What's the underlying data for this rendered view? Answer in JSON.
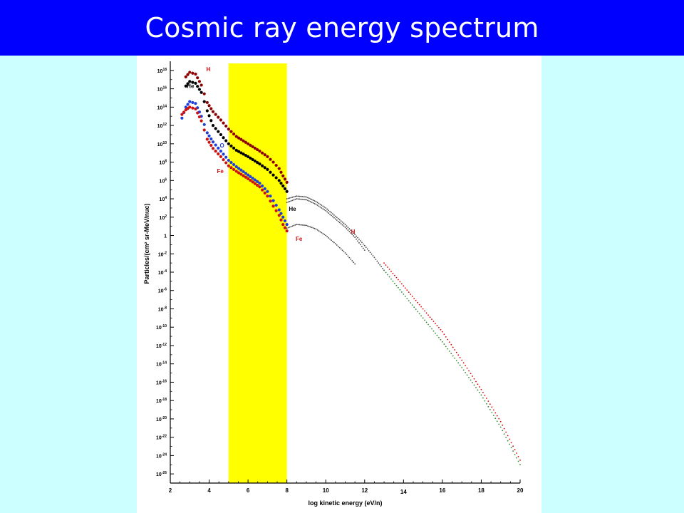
{
  "slide": {
    "title": "Cosmic ray energy spectrum",
    "title_bar_color": "#0000ff",
    "background_color": "#ccffff"
  },
  "chart_data": {
    "type": "scatter",
    "title": "",
    "xlabel": "log kinetic energy (eV/n)",
    "ylabel": "Particles/(cm² sr-MeV/nuc)",
    "x_ticks": [
      2,
      4,
      6,
      8,
      10,
      12,
      14,
      16,
      18,
      20
    ],
    "x_tick_labels": [
      "2",
      "4",
      "6",
      "8",
      "10",
      "12",
      "14",
      "16",
      "18",
      "20"
    ],
    "xlim": [
      2,
      20
    ],
    "y_scale": "log",
    "y_tick_exponents": [
      18,
      16,
      14,
      12,
      10,
      8,
      6,
      4,
      2,
      0,
      -2,
      -4,
      -6,
      -8,
      -10,
      -12,
      -14,
      -16,
      -18,
      -20,
      -22,
      -24,
      -26
    ],
    "ylim_log10": [
      -27,
      19
    ],
    "highlight_band": {
      "x_range": [
        5,
        8
      ],
      "color": "#ffff00"
    },
    "grid": false,
    "series": [
      {
        "name": "H",
        "color": "#8b0000",
        "group": "low-energy",
        "points": [
          [
            2.8,
            17.3
          ],
          [
            3.0,
            17.8
          ],
          [
            3.3,
            17.6
          ],
          [
            3.6,
            16.4
          ],
          [
            3.9,
            14.5
          ],
          [
            4.2,
            13.5
          ],
          [
            4.6,
            12.6
          ],
          [
            5.0,
            11.6
          ],
          [
            5.4,
            10.8
          ],
          [
            6.0,
            10.0
          ],
          [
            6.6,
            9.2
          ],
          [
            7.0,
            8.6
          ],
          [
            7.3,
            8.0
          ],
          [
            7.6,
            7.3
          ],
          [
            7.8,
            6.5
          ],
          [
            8.0,
            5.8
          ]
        ]
      },
      {
        "name": "He",
        "color": "#000000",
        "group": "low-energy",
        "points": [
          [
            2.8,
            16.3
          ],
          [
            3.0,
            16.8
          ],
          [
            3.3,
            16.6
          ],
          [
            3.6,
            15.6
          ],
          [
            3.9,
            13.6
          ],
          [
            4.2,
            12.0
          ],
          [
            4.6,
            11.0
          ],
          [
            5.0,
            10.0
          ],
          [
            5.4,
            9.3
          ],
          [
            6.0,
            8.6
          ],
          [
            6.6,
            7.8
          ],
          [
            7.0,
            7.2
          ],
          [
            7.3,
            6.6
          ],
          [
            7.6,
            6.0
          ],
          [
            7.8,
            5.4
          ],
          [
            8.0,
            4.8
          ]
        ]
      },
      {
        "name": "O",
        "color": "#1f3fd8",
        "group": "low-energy",
        "points": [
          [
            2.6,
            12.8
          ],
          [
            2.8,
            14.0
          ],
          [
            3.0,
            14.6
          ],
          [
            3.3,
            14.4
          ],
          [
            3.6,
            13.0
          ],
          [
            3.9,
            11.2
          ],
          [
            4.2,
            10.2
          ],
          [
            4.6,
            9.2
          ],
          [
            5.0,
            8.2
          ],
          [
            5.4,
            7.5
          ],
          [
            6.0,
            6.6
          ],
          [
            6.6,
            5.7
          ],
          [
            7.0,
            4.8
          ],
          [
            7.3,
            3.8
          ],
          [
            7.6,
            2.8
          ],
          [
            7.8,
            2.0
          ],
          [
            8.0,
            1.2
          ]
        ]
      },
      {
        "name": "Fe",
        "color": "#cc1111",
        "group": "low-energy",
        "points": [
          [
            2.6,
            13.2
          ],
          [
            2.8,
            13.7
          ],
          [
            3.0,
            14.0
          ],
          [
            3.3,
            13.8
          ],
          [
            3.6,
            12.5
          ],
          [
            3.9,
            10.5
          ],
          [
            4.2,
            9.5
          ],
          [
            4.6,
            8.6
          ],
          [
            5.0,
            7.6
          ],
          [
            5.4,
            7.0
          ],
          [
            6.0,
            6.2
          ],
          [
            6.6,
            5.3
          ],
          [
            7.0,
            4.3
          ],
          [
            7.3,
            3.2
          ],
          [
            7.6,
            2.2
          ],
          [
            7.8,
            1.2
          ],
          [
            8.0,
            0.5
          ]
        ]
      },
      {
        "name": "He",
        "color": "#444444",
        "group": "high-energy",
        "points": [
          [
            8.0,
            3.6
          ],
          [
            8.5,
            4.0
          ],
          [
            9.0,
            3.9
          ],
          [
            9.5,
            3.4
          ],
          [
            10.0,
            2.7
          ],
          [
            10.5,
            1.8
          ],
          [
            11.0,
            0.9
          ],
          [
            11.5,
            -0.2
          ],
          [
            12.0,
            -1.6
          ]
        ]
      },
      {
        "name": "H",
        "color": "#444444",
        "group": "high-energy",
        "points": [
          [
            8.0,
            4.0
          ],
          [
            8.5,
            4.3
          ],
          [
            9.0,
            4.2
          ],
          [
            9.5,
            3.7
          ],
          [
            10.0,
            3.0
          ],
          [
            10.5,
            2.1
          ],
          [
            11.0,
            1.2
          ],
          [
            11.5,
            0.1
          ],
          [
            12.0,
            -1.1
          ],
          [
            12.5,
            -2.4
          ],
          [
            13.0,
            -3.8
          ]
        ]
      },
      {
        "name": "Fe",
        "color": "#444444",
        "group": "high-energy",
        "points": [
          [
            8.0,
            0.8
          ],
          [
            8.5,
            1.2
          ],
          [
            9.0,
            1.1
          ],
          [
            9.5,
            0.7
          ],
          [
            10.0,
            0.0
          ],
          [
            10.5,
            -0.9
          ],
          [
            11.0,
            -1.9
          ],
          [
            11.5,
            -3.1
          ]
        ]
      },
      {
        "name": "",
        "color": "#e00000",
        "group": "ultra-high",
        "points": [
          [
            13.0,
            -3.0
          ],
          [
            14.0,
            -5.5
          ],
          [
            15.0,
            -8.0
          ],
          [
            16.0,
            -10.5
          ],
          [
            17.0,
            -13.6
          ],
          [
            18.0,
            -16.8
          ],
          [
            19.0,
            -20.3
          ],
          [
            20.0,
            -24.5
          ]
        ]
      },
      {
        "name": "",
        "color": "#2e8b2e",
        "group": "ultra-high",
        "points": [
          [
            13.0,
            -3.8
          ],
          [
            14.0,
            -6.4
          ],
          [
            15.0,
            -9.0
          ],
          [
            16.0,
            -11.6
          ],
          [
            17.0,
            -14.4
          ],
          [
            18.0,
            -17.4
          ],
          [
            19.0,
            -20.9
          ],
          [
            20.0,
            -25.0
          ]
        ]
      }
    ],
    "annotations": [
      {
        "text": "H",
        "x": 3.85,
        "y": 17.9,
        "color": "#cc1111"
      },
      {
        "text": "He",
        "x": 2.85,
        "y": 16.1,
        "color": "#000000"
      },
      {
        "text": "O",
        "x": 4.55,
        "y": 9.6,
        "color": "#1f3fd8"
      },
      {
        "text": "Fe",
        "x": 4.4,
        "y": 6.8,
        "color": "#cc1111"
      },
      {
        "text": "He",
        "x": 8.1,
        "y": 2.7,
        "color": "#000000"
      },
      {
        "text": "H",
        "x": 11.3,
        "y": 0.2,
        "color": "#cc1111"
      },
      {
        "text": "Fe",
        "x": 8.45,
        "y": -0.6,
        "color": "#cc1111"
      }
    ]
  }
}
